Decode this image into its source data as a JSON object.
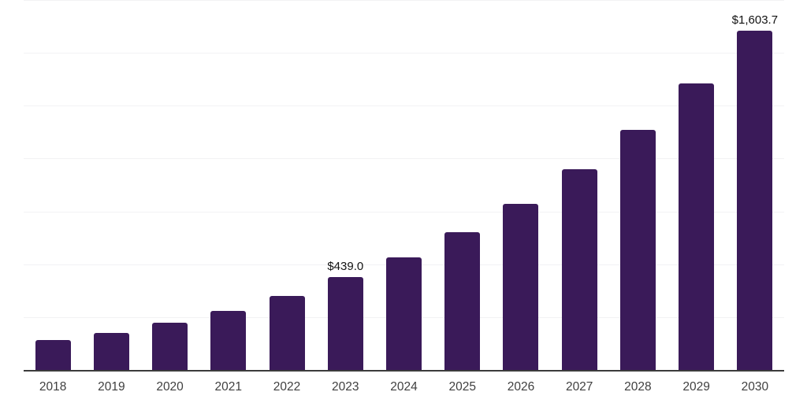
{
  "chart_data": {
    "type": "bar",
    "title": "",
    "xlabel": "",
    "ylabel": "",
    "categories": [
      "2018",
      "2019",
      "2020",
      "2021",
      "2022",
      "2023",
      "2024",
      "2025",
      "2026",
      "2027",
      "2028",
      "2029",
      "2030"
    ],
    "values": [
      140,
      175,
      223,
      281,
      351,
      439.0,
      534,
      653,
      787,
      951,
      1137,
      1356,
      1603.7
    ],
    "ylim": [
      0,
      1750
    ],
    "gridline_values": [
      250,
      500,
      750,
      1000,
      1250,
      1500,
      1750
    ],
    "grid": "horizontal",
    "legend": "none",
    "data_labels": [
      {
        "category": "2023",
        "text": "$439.0"
      },
      {
        "category": "2030",
        "text": "$1,603.7"
      }
    ],
    "colors": {
      "bar": "#3a1a59",
      "gridline": "#f2f2f4",
      "axis_line": "#3c3c3c",
      "tick_label": "#3f3f3f",
      "value_label": "#121212",
      "background": "#ffffff"
    }
  }
}
